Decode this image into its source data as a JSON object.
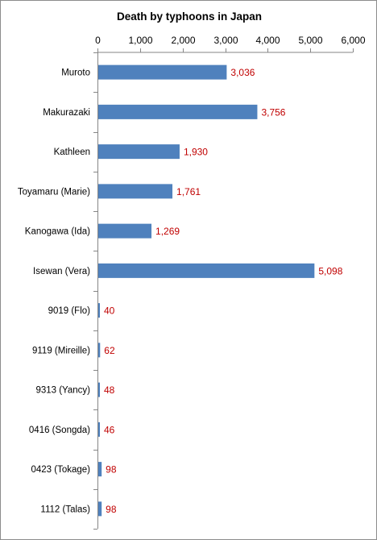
{
  "chart_data": {
    "type": "bar",
    "orientation": "horizontal",
    "title": "Death by typhoons in Japan",
    "xlabel": "",
    "ylabel": "",
    "xlim": [
      0,
      6000
    ],
    "x_ticks": [
      "0",
      "1,000",
      "2,000",
      "3,000",
      "4,000",
      "5,000",
      "6,000"
    ],
    "x_tick_values": [
      0,
      1000,
      2000,
      3000,
      4000,
      5000,
      6000
    ],
    "x_axis_position": "top",
    "grid": false,
    "legend": "none",
    "categories": [
      "Muroto",
      "Makurazaki",
      "Kathleen",
      "Toyamaru  (Marie)",
      "Kanogawa (Ida)",
      "Isewan (Vera)",
      "9019 (Flo)",
      "9119 (Mireille)",
      "9313 (Yancy)",
      "0416 (Songda)",
      "0423 (Tokage)",
      "1112 (Talas)"
    ],
    "values": [
      3036,
      3756,
      1930,
      1761,
      1269,
      5098,
      40,
      62,
      48,
      46,
      98,
      98
    ],
    "data_labels": [
      "3,036",
      "3,756",
      "1,930",
      "1,761",
      "1,269",
      "5,098",
      "40",
      "62",
      "48",
      "46",
      "98",
      "98"
    ],
    "colors": {
      "bar": "#4f81bd",
      "label": "#c00000",
      "axis": "#868686"
    }
  }
}
